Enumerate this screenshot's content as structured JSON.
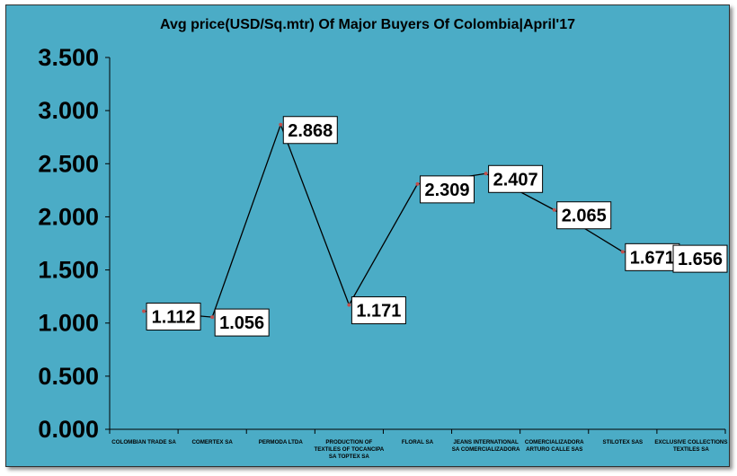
{
  "chart_data": {
    "type": "line",
    "title": "Avg price(USD/Sq.mtr) Of Major Buyers Of Colombia|April'17",
    "xlabel": "",
    "ylabel": "",
    "categories": [
      [
        "COLOMBIAN TRADE SA"
      ],
      [
        "COMERTEX SA"
      ],
      [
        "PERMODA LTDA"
      ],
      [
        "PRODUCTION OF",
        "TEXTILES OF TOCANCIPA",
        "SA TOPTEX SA"
      ],
      [
        "FLORAL SA"
      ],
      [
        "JEANS INTERNATIONAL",
        "SA COMERCIALIZADORA"
      ],
      [
        "COMERCIALIZADORA",
        "ARTURO CALLE SAS"
      ],
      [
        "STILOTEX SAS"
      ],
      [
        "EXCLUSIVE COLLECTIONS",
        "TEXTILES SA"
      ]
    ],
    "values": [
      1.112,
      1.056,
      2.868,
      1.171,
      2.309,
      2.407,
      2.065,
      1.671,
      1.656
    ],
    "value_labels": [
      "1.112",
      "1.056",
      "2.868",
      "1.171",
      "2.309",
      "2.407",
      "2.065",
      "1.671",
      "1.656"
    ],
    "ylim": [
      0,
      3.5
    ],
    "yticks": [
      0,
      0.5,
      1.0,
      1.5,
      2.0,
      2.5,
      3.0,
      3.5
    ],
    "ytick_labels": [
      "0.000",
      "0.500",
      "1.000",
      "1.500",
      "2.000",
      "2.500",
      "3.000",
      "3.500"
    ],
    "grid": false,
    "legend": "none",
    "colors": {
      "background": "#4bacc6",
      "line": "#000000",
      "marker": "#c0504d",
      "label_box": "#ffffff"
    }
  }
}
